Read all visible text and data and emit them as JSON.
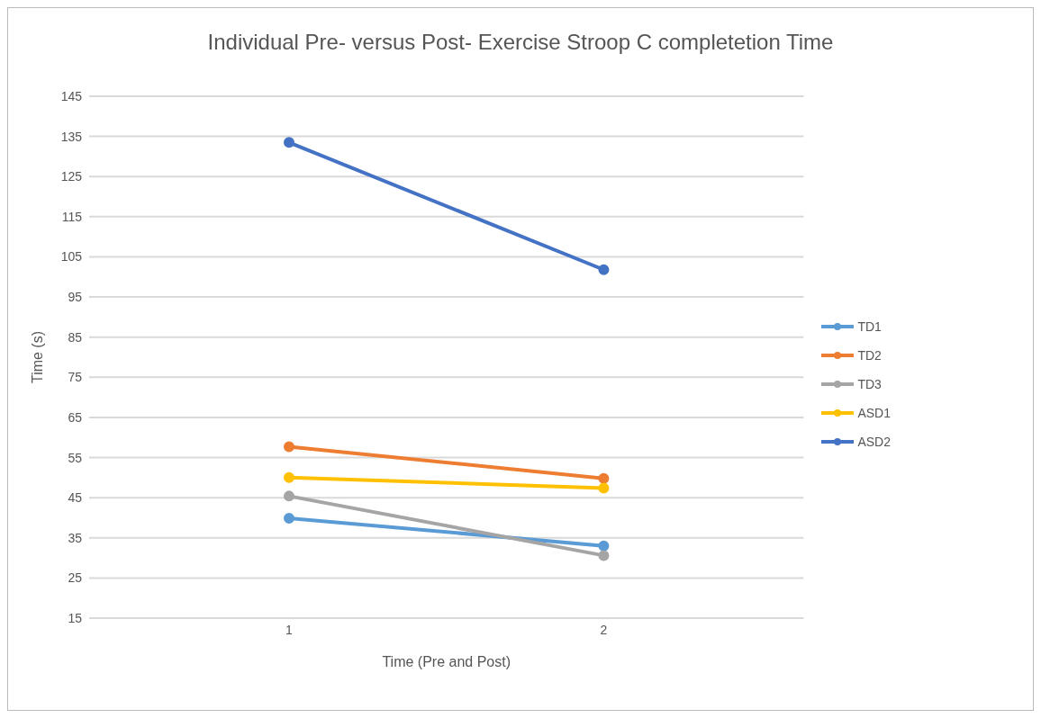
{
  "chart_data": {
    "type": "line",
    "title": "Individual Pre- versus Post- Exercise Stroop C completetion Time",
    "xlabel": "Time (Pre and Post)",
    "ylabel": "Time (s)",
    "categories": [
      "1",
      "2"
    ],
    "series": [
      {
        "name": "TD1",
        "color": "#5b9bd5",
        "values": [
          39.9,
          33.0
        ]
      },
      {
        "name": "TD2",
        "color": "#ed7d31",
        "values": [
          57.7,
          49.8
        ]
      },
      {
        "name": "TD3",
        "color": "#a5a5a5",
        "values": [
          45.4,
          30.6
        ]
      },
      {
        "name": "ASD1",
        "color": "#ffc000",
        "values": [
          50.0,
          47.4
        ]
      },
      {
        "name": "ASD2",
        "color": "#4472c4",
        "values": [
          133.5,
          101.8
        ]
      }
    ],
    "ylim": [
      15,
      145
    ],
    "yticks": [
      15,
      25,
      35,
      45,
      55,
      65,
      75,
      85,
      95,
      105,
      115,
      125,
      135,
      145
    ],
    "grid": "y",
    "legend": "right",
    "marker": "circle",
    "line_style": "solid"
  }
}
